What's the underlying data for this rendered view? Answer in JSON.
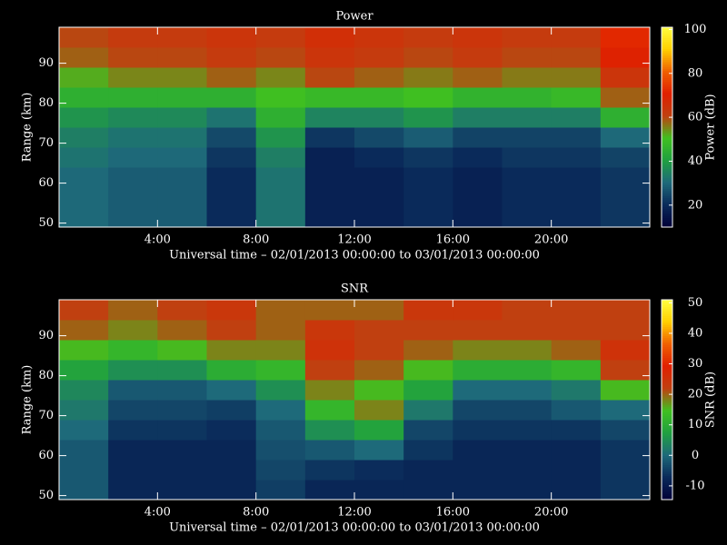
{
  "chart_data": [
    {
      "type": "heatmap",
      "title": "Power",
      "xlabel": "Universal time – 02/01/2013 00:00:00 to 03/01/2013 00:00:00",
      "ylabel": "Range (km)",
      "colorbar_label": "Power (dB)",
      "x_bins": [
        0,
        2,
        4,
        6,
        8,
        10,
        12,
        14,
        16,
        18,
        20,
        22,
        24
      ],
      "y_bins": [
        49,
        54,
        59,
        64,
        69,
        74,
        79,
        84,
        89,
        94,
        99
      ],
      "z": [
        [
          30,
          28,
          28,
          20,
          32,
          18,
          18,
          20,
          18,
          20,
          20,
          22
        ],
        [
          30,
          28,
          28,
          20,
          32,
          18,
          18,
          20,
          18,
          20,
          20,
          22
        ],
        [
          30,
          28,
          28,
          20,
          32,
          18,
          18,
          20,
          18,
          20,
          20,
          22
        ],
        [
          32,
          30,
          30,
          22,
          34,
          18,
          20,
          22,
          20,
          22,
          22,
          24
        ],
        [
          34,
          32,
          32,
          25,
          38,
          22,
          25,
          28,
          24,
          24,
          24,
          30
        ],
        [
          38,
          36,
          36,
          32,
          45,
          35,
          35,
          38,
          34,
          34,
          34,
          45
        ],
        [
          45,
          45,
          45,
          45,
          50,
          48,
          48,
          50,
          46,
          46,
          48,
          58
        ],
        [
          52,
          55,
          55,
          58,
          55,
          60,
          58,
          56,
          58,
          56,
          56,
          64
        ],
        [
          58,
          60,
          60,
          62,
          60,
          64,
          62,
          60,
          62,
          60,
          60,
          70
        ],
        [
          60,
          62,
          62,
          64,
          62,
          66,
          64,
          62,
          64,
          62,
          62,
          72
        ]
      ],
      "xlim": [
        0,
        24
      ],
      "ylim": [
        49,
        99
      ],
      "xticks": [
        {
          "value": 4,
          "label": "4:00"
        },
        {
          "value": 8,
          "label": "8:00"
        },
        {
          "value": 12,
          "label": "12:00"
        },
        {
          "value": 16,
          "label": "16:00"
        },
        {
          "value": 20,
          "label": "20:00"
        }
      ],
      "yticks": [
        50,
        60,
        70,
        80,
        90
      ],
      "clim": [
        10,
        101
      ],
      "cticks": [
        20,
        40,
        60,
        80,
        100
      ],
      "colormap": [
        "#000038",
        "#0a2a5a",
        "#1e6a7a",
        "#20a040",
        "#40c020",
        "#c04010",
        "#e02000",
        "#f06000",
        "#ffd000",
        "#ffff40"
      ]
    },
    {
      "type": "heatmap",
      "title": "SNR",
      "xlabel": "Universal time – 02/01/2013 00:00:00 to 03/01/2013 00:00:00",
      "ylabel": "Range (km)",
      "colorbar_label": "SNR (dB)",
      "x_bins": [
        0,
        2,
        4,
        6,
        8,
        10,
        12,
        14,
        16,
        18,
        20,
        22,
        24
      ],
      "y_bins": [
        49,
        54,
        59,
        64,
        69,
        74,
        79,
        84,
        89,
        94,
        99
      ],
      "z": [
        [
          -2,
          -8,
          -8,
          -8,
          -5,
          -8,
          -8,
          -8,
          -8,
          -8,
          -8,
          -6
        ],
        [
          -2,
          -8,
          -8,
          -8,
          -4,
          -6,
          -7,
          -8,
          -8,
          -8,
          -8,
          -6
        ],
        [
          -2,
          -8,
          -8,
          -8,
          -3,
          -2,
          0,
          -6,
          -8,
          -8,
          -8,
          -6
        ],
        [
          0,
          -6,
          -6,
          -7,
          -2,
          5,
          8,
          -4,
          -6,
          -6,
          -6,
          -4
        ],
        [
          2,
          -4,
          -4,
          -5,
          0,
          12,
          18,
          2,
          -4,
          -4,
          -2,
          0
        ],
        [
          4,
          -2,
          -2,
          0,
          5,
          18,
          15,
          8,
          0,
          0,
          2,
          15
        ],
        [
          8,
          5,
          5,
          10,
          12,
          22,
          20,
          15,
          10,
          10,
          12,
          22
        ],
        [
          15,
          12,
          15,
          18,
          18,
          25,
          22,
          20,
          18,
          18,
          20,
          25
        ],
        [
          20,
          18,
          20,
          22,
          20,
          24,
          22,
          22,
          22,
          22,
          22,
          22
        ],
        [
          22,
          20,
          22,
          24,
          20,
          20,
          20,
          24,
          24,
          22,
          22,
          22
        ]
      ],
      "xlim": [
        0,
        24
      ],
      "ylim": [
        49,
        99
      ],
      "xticks": [
        {
          "value": 4,
          "label": "4:00"
        },
        {
          "value": 8,
          "label": "8:00"
        },
        {
          "value": 12,
          "label": "12:00"
        },
        {
          "value": 16,
          "label": "16:00"
        },
        {
          "value": 20,
          "label": "20:00"
        }
      ],
      "yticks": [
        50,
        60,
        70,
        80,
        90
      ],
      "clim": [
        -14.5,
        51
      ],
      "cticks": [
        -10,
        0,
        10,
        20,
        30,
        40,
        50
      ],
      "colormap": [
        "#000038",
        "#0a2a5a",
        "#1e6a7a",
        "#20a040",
        "#40c020",
        "#c04010",
        "#e02000",
        "#f06000",
        "#ffd000",
        "#ffff40"
      ]
    }
  ]
}
